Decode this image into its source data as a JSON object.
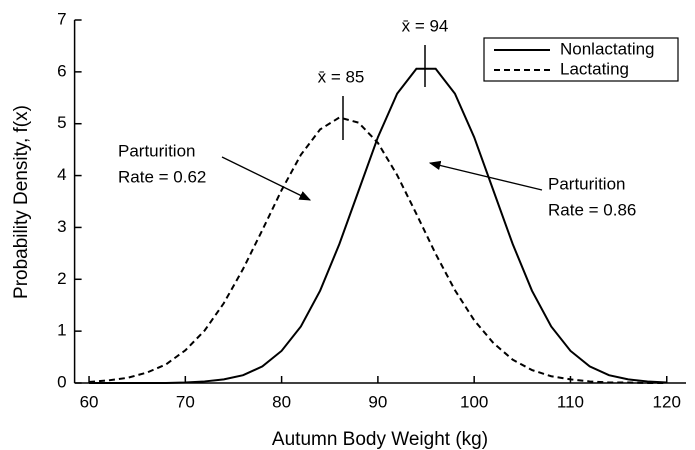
{
  "chart_data": {
    "type": "line",
    "xlabel": "Autumn Body Weight (kg)",
    "ylabel": "Probability Density, f(x)",
    "x": [
      60,
      62,
      64,
      66,
      68,
      70,
      72,
      74,
      76,
      78,
      80,
      82,
      84,
      86,
      88,
      90,
      92,
      94,
      96,
      98,
      100,
      102,
      104,
      106,
      108,
      110,
      112,
      114,
      116,
      118,
      120
    ],
    "series": [
      {
        "name": "Nonlactating",
        "color": "#000000",
        "style": "solid",
        "values": [
          0,
          0,
          0,
          0,
          0,
          0.01,
          0.03,
          0.07,
          0.15,
          0.32,
          0.62,
          1.09,
          1.78,
          2.68,
          3.71,
          4.74,
          5.58,
          6.06,
          6.06,
          5.58,
          4.74,
          3.71,
          2.68,
          1.78,
          1.09,
          0.62,
          0.32,
          0.15,
          0.07,
          0.03,
          0.01
        ]
      },
      {
        "name": "Lactating",
        "color": "#000000",
        "style": "dashed",
        "values": [
          0.02,
          0.05,
          0.1,
          0.2,
          0.36,
          0.63,
          1.01,
          1.54,
          2.2,
          2.95,
          3.72,
          4.4,
          4.89,
          5.12,
          5.02,
          4.63,
          4.01,
          3.26,
          2.49,
          1.79,
          1.21,
          0.77,
          0.45,
          0.25,
          0.13,
          0.07,
          0.03,
          0.01,
          0.01,
          0,
          0
        ]
      }
    ],
    "xlim": [
      58.5,
      122
    ],
    "ylim": [
      0,
      7
    ],
    "xticks": [
      60,
      70,
      80,
      90,
      100,
      110,
      120
    ],
    "yticks": [
      0,
      1,
      2,
      3,
      4,
      5,
      6,
      7
    ],
    "legend": "upper right",
    "annotations": [
      {
        "lines": [
          "x̄ = 94"
        ]
      },
      {
        "lines": [
          "x̄ = 85"
        ]
      },
      {
        "lines": [
          "Parturition",
          "Rate = 0.62"
        ]
      },
      {
        "lines": [
          "Parturition",
          "Rate = 0.86"
        ]
      }
    ]
  }
}
